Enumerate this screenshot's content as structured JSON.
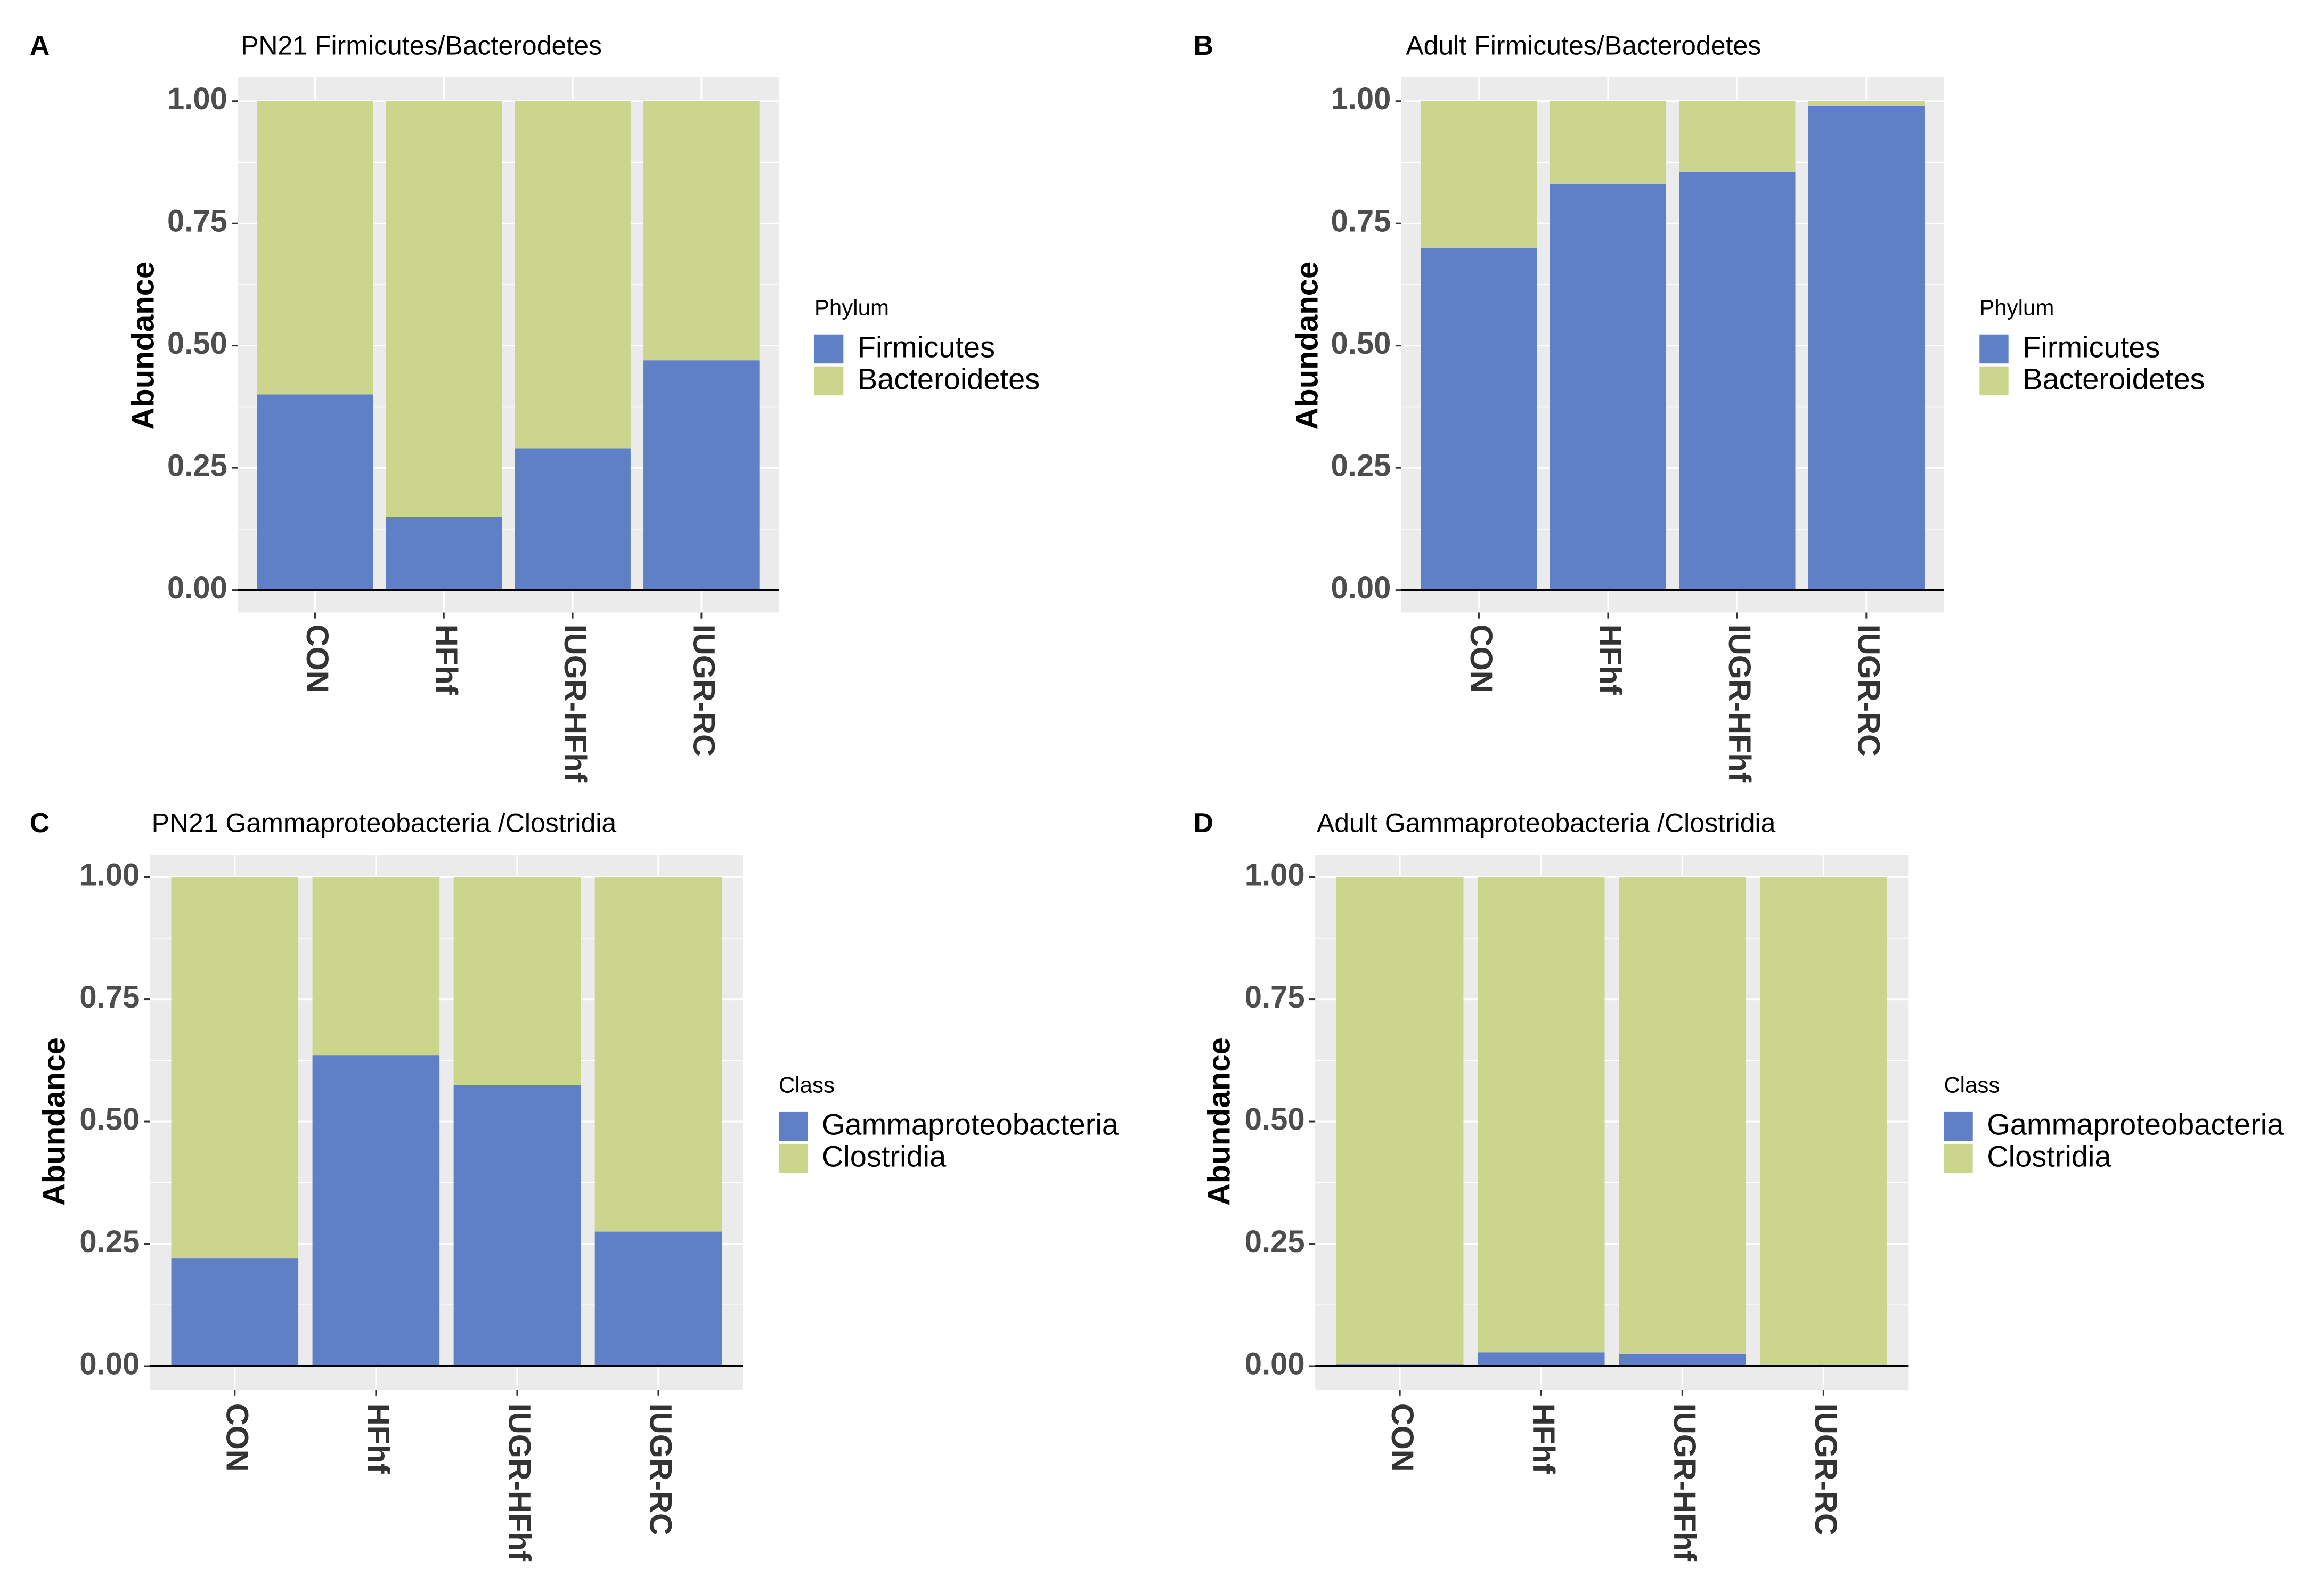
{
  "chart_data": [
    {
      "panel_letter": "A",
      "type": "bar",
      "stacked": true,
      "title": "PN21 Firmicutes/Bacterodetes",
      "xlabel": "",
      "ylabel": "Abundance",
      "ylim": [
        0,
        1
      ],
      "yticks": [
        "0.00",
        "0.25",
        "0.50",
        "0.75",
        "1.00"
      ],
      "categories": [
        "CON",
        "HFhf",
        "IUGR-HFhf",
        "IUGR-RC"
      ],
      "legend_title": "Phylum",
      "legend_position": "right",
      "series": [
        {
          "name": "Firmicutes",
          "color": "#5f7fc7",
          "values": [
            0.4,
            0.15,
            0.29,
            0.47
          ]
        },
        {
          "name": "Bacteroidetes",
          "color": "#cbd68c",
          "values": [
            0.6,
            0.85,
            0.71,
            0.53
          ]
        }
      ]
    },
    {
      "panel_letter": "B",
      "type": "bar",
      "stacked": true,
      "title": "Adult Firmicutes/Bacterodetes",
      "xlabel": "",
      "ylabel": "Abundance",
      "ylim": [
        0,
        1
      ],
      "yticks": [
        "0.00",
        "0.25",
        "0.50",
        "0.75",
        "1.00"
      ],
      "categories": [
        "CON",
        "HFhf",
        "IUGR-HFhf",
        "IUGR-RC"
      ],
      "legend_title": "Phylum",
      "legend_position": "right",
      "series": [
        {
          "name": "Firmicutes",
          "color": "#5f7fc7",
          "values": [
            0.7,
            0.83,
            0.855,
            0.99
          ]
        },
        {
          "name": "Bacteroidetes",
          "color": "#cbd68c",
          "values": [
            0.3,
            0.17,
            0.145,
            0.01
          ]
        }
      ]
    },
    {
      "panel_letter": "C",
      "type": "bar",
      "stacked": true,
      "title": "PN21 Gammaproteobacteria /Clostridia",
      "xlabel": "",
      "ylabel": "Abundance",
      "ylim": [
        0,
        1
      ],
      "yticks": [
        "0.00",
        "0.25",
        "0.50",
        "0.75",
        "1.00"
      ],
      "categories": [
        "CON",
        "HFhf",
        "IUGR-HFhf",
        "IUGR-RC"
      ],
      "legend_title": "Class",
      "legend_position": "right",
      "series": [
        {
          "name": "Gammaproteobacteria",
          "color": "#5f7fc7",
          "values": [
            0.22,
            0.635,
            0.575,
            0.275
          ]
        },
        {
          "name": "Clostridia",
          "color": "#cbd68c",
          "values": [
            0.78,
            0.365,
            0.425,
            0.725
          ]
        }
      ]
    },
    {
      "panel_letter": "D",
      "type": "bar",
      "stacked": true,
      "title": "Adult Gammaproteobacteria /Clostridia",
      "xlabel": "",
      "ylabel": "Abundance",
      "ylim": [
        0,
        1
      ],
      "yticks": [
        "0.00",
        "0.25",
        "0.50",
        "0.75",
        "1.00"
      ],
      "categories": [
        "CON",
        "HFhf",
        "IUGR-HFhf",
        "IUGR-RC"
      ],
      "legend_title": "Class",
      "legend_position": "right",
      "series": [
        {
          "name": "Gammaproteobacteria",
          "color": "#5f7fc7",
          "values": [
            0.003,
            0.028,
            0.025,
            0.002
          ]
        },
        {
          "name": "Clostridia",
          "color": "#cbd68c",
          "values": [
            0.997,
            0.972,
            0.975,
            0.998
          ]
        }
      ]
    }
  ]
}
